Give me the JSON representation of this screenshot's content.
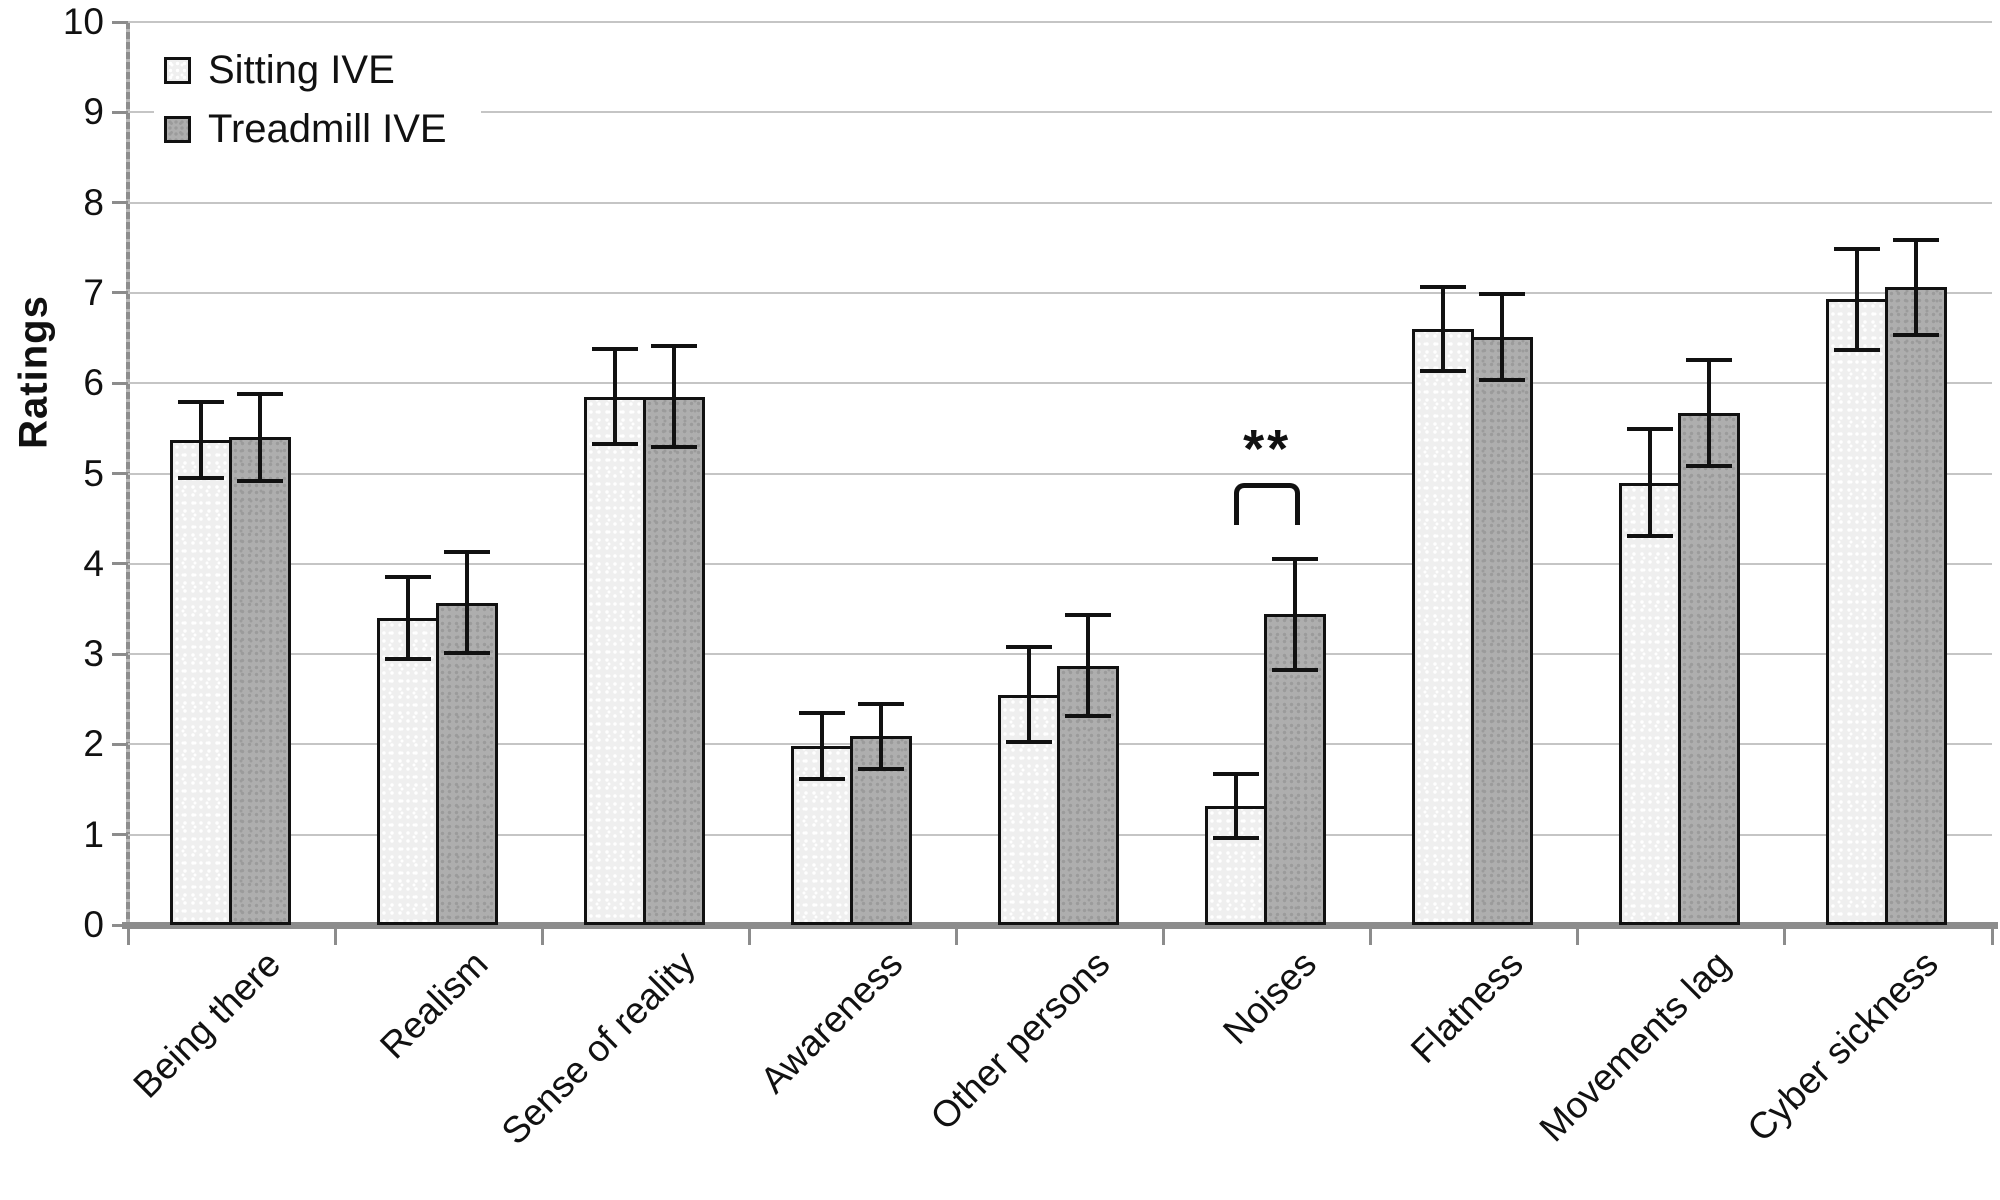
{
  "chart_data": {
    "type": "bar",
    "title": "",
    "xlabel": "",
    "ylabel": "Ratings",
    "ylim": [
      0,
      10
    ],
    "yticks": [
      0,
      1,
      2,
      3,
      4,
      5,
      6,
      7,
      8,
      9,
      10
    ],
    "grid": true,
    "legend_position": "top-left",
    "categories": [
      "Being there",
      "Realism",
      "Sense of reality",
      "Awareness",
      "Other persons",
      "Noises",
      "Flatness",
      "Movements lag",
      "Cyber sickness"
    ],
    "series": [
      {
        "name": "Sitting IVE",
        "values": [
          5.37,
          3.4,
          5.85,
          1.98,
          2.55,
          1.32,
          6.6,
          4.9,
          6.93
        ],
        "errors": [
          0.44,
          0.48,
          0.55,
          0.39,
          0.55,
          0.38,
          0.49,
          0.61,
          0.58
        ]
      },
      {
        "name": "Treadmill IVE",
        "values": [
          5.4,
          3.57,
          5.85,
          2.09,
          2.87,
          3.44,
          6.51,
          5.67,
          7.06
        ],
        "errors": [
          0.5,
          0.58,
          0.58,
          0.38,
          0.58,
          0.64,
          0.5,
          0.61,
          0.55
        ]
      }
    ],
    "annotation": {
      "text": "**",
      "category": "Noises",
      "between": [
        "Sitting IVE",
        "Treadmill IVE"
      ],
      "bracket_top_value": 4.9,
      "stars_value": 5.25
    }
  },
  "colors": {
    "sitting_fill": "#efefef",
    "sitting_dot": "#ffffff",
    "treadmill_fill": "#aeaeae",
    "treadmill_dot": "#9b9b9b",
    "bar_border": "#111111",
    "gridline": "#c5c5c5",
    "axis": "#8c8c8c",
    "error_bar": "#111111",
    "text": "#111111"
  }
}
